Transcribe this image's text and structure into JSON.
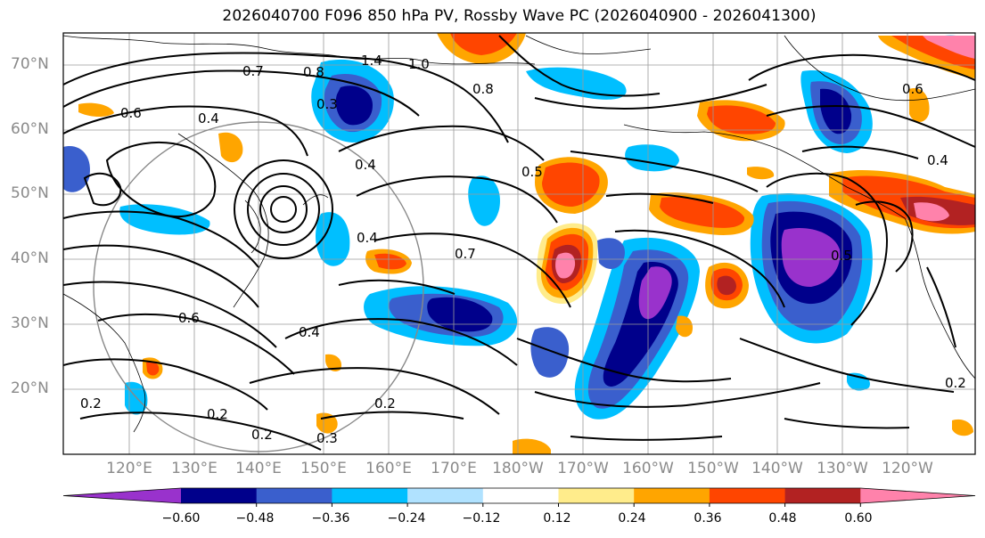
{
  "title": "2026040700 F096 850 hPa PV, Rossby Wave PC (2026040900 - 2026041300)",
  "lat_labels": [
    "70°N",
    "60°N",
    "50°N",
    "40°N",
    "30°N",
    "20°N"
  ],
  "lon_labels": [
    "120°E",
    "130°E",
    "140°E",
    "150°E",
    "160°E",
    "170°E",
    "180°W",
    "170°W",
    "160°W",
    "150°W",
    "140°W",
    "130°W",
    "120°W"
  ],
  "colorbar": {
    "tick_labels": [
      "−0.60",
      "−0.48",
      "−0.36",
      "−0.24",
      "−0.12",
      "0.12",
      "0.24",
      "0.36",
      "0.48",
      "0.60"
    ],
    "colors": [
      "#9932cc",
      "#00008b",
      "#3a5fcd",
      "#00bfff",
      "#b0e2ff",
      "#ffffff",
      "#ffec8b",
      "#ffa500",
      "#ff4500",
      "#b22222",
      "#ff82ab"
    ]
  },
  "contour_labels": [
    "1.4",
    "1.0",
    "0.7",
    "0.8",
    "0.6",
    "0.4",
    "0.3",
    "0.5",
    "0.2"
  ]
}
